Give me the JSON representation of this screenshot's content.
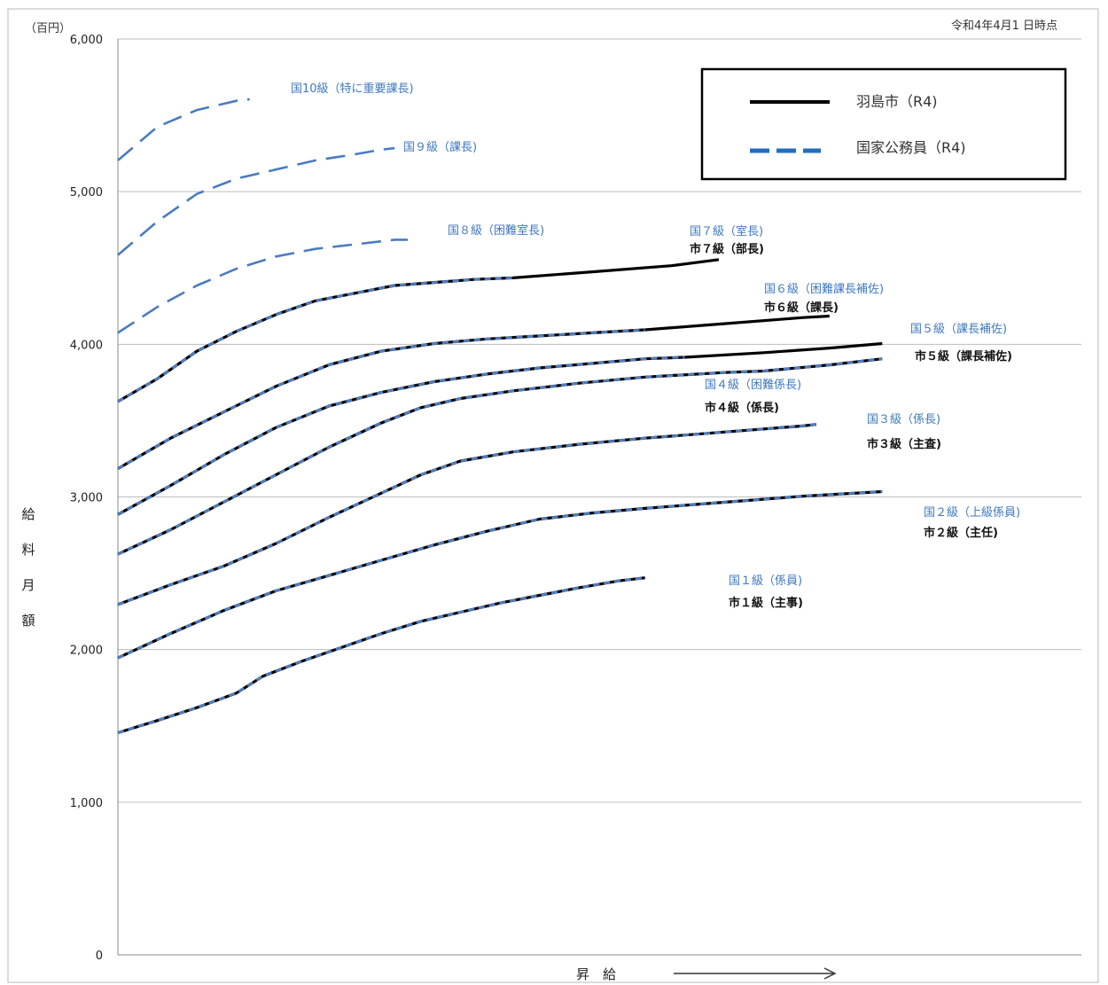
{
  "chart_data": {
    "type": "line",
    "unit_label": "（百円）",
    "date_note": "令和4年4月1 日時点",
    "ylabel": "給料月額",
    "xlabel": "昇　給",
    "ylim": [
      0,
      6000
    ],
    "yticks": [
      0,
      1000,
      2000,
      3000,
      4000,
      5000,
      6000
    ],
    "ytick_labels": [
      "0",
      "1,000",
      "2,000",
      "3,000",
      "4,000",
      "5,000",
      "6,000"
    ],
    "grid": true,
    "legend_position": "top-right",
    "legend": [
      {
        "label": "羽島市（R4)",
        "style": "solid",
        "color": "#000000"
      },
      {
        "label": "国家公務員（R4)",
        "style": "dashed",
        "color": "#1f6fc0"
      }
    ],
    "series": [
      {
        "grade": 1,
        "national_label": "国１級（係員)",
        "city_label": "市１級（主事)",
        "national_points": [
          [
            0,
            1455
          ],
          [
            15,
            1535
          ],
          [
            30,
            1620
          ],
          [
            45,
            1715
          ],
          [
            55,
            1825
          ],
          [
            70,
            1925
          ],
          [
            85,
            2015
          ],
          [
            100,
            2105
          ],
          [
            115,
            2185
          ],
          [
            130,
            2245
          ],
          [
            145,
            2305
          ],
          [
            160,
            2355
          ],
          [
            175,
            2405
          ],
          [
            190,
            2450
          ],
          [
            200,
            2470
          ]
        ],
        "city_points": [
          [
            0,
            1455
          ],
          [
            15,
            1535
          ],
          [
            30,
            1620
          ],
          [
            45,
            1715
          ],
          [
            55,
            1825
          ],
          [
            70,
            1925
          ],
          [
            85,
            2015
          ],
          [
            100,
            2105
          ],
          [
            115,
            2185
          ],
          [
            130,
            2245
          ],
          [
            145,
            2305
          ],
          [
            160,
            2355
          ],
          [
            175,
            2405
          ],
          [
            190,
            2450
          ],
          [
            200,
            2470
          ]
        ]
      },
      {
        "grade": 2,
        "national_label": "国２級（上級係員)",
        "city_label": "市２級（主任)",
        "national_points": [
          [
            0,
            1945
          ],
          [
            20,
            2105
          ],
          [
            40,
            2255
          ],
          [
            60,
            2385
          ],
          [
            80,
            2485
          ],
          [
            100,
            2585
          ],
          [
            120,
            2685
          ],
          [
            140,
            2775
          ],
          [
            160,
            2855
          ],
          [
            180,
            2895
          ],
          [
            200,
            2925
          ],
          [
            230,
            2965
          ],
          [
            260,
            3005
          ],
          [
            290,
            3035
          ]
        ],
        "city_points": [
          [
            0,
            1945
          ],
          [
            20,
            2105
          ],
          [
            40,
            2255
          ],
          [
            60,
            2385
          ],
          [
            80,
            2485
          ],
          [
            100,
            2585
          ],
          [
            120,
            2685
          ],
          [
            140,
            2775
          ],
          [
            160,
            2855
          ],
          [
            180,
            2895
          ],
          [
            200,
            2925
          ],
          [
            230,
            2965
          ],
          [
            260,
            3005
          ],
          [
            290,
            3035
          ]
        ]
      },
      {
        "grade": 3,
        "national_label": "国３級（係長)",
        "city_label": "市３級（主査)",
        "national_points": [
          [
            0,
            2295
          ],
          [
            20,
            2425
          ],
          [
            40,
            2545
          ],
          [
            60,
            2695
          ],
          [
            80,
            2865
          ],
          [
            100,
            3025
          ],
          [
            115,
            3145
          ],
          [
            130,
            3235
          ],
          [
            150,
            3295
          ],
          [
            175,
            3345
          ],
          [
            200,
            3385
          ],
          [
            230,
            3425
          ],
          [
            260,
            3465
          ],
          [
            265,
            3475
          ]
        ],
        "city_points": [
          [
            0,
            2295
          ],
          [
            20,
            2425
          ],
          [
            40,
            2545
          ],
          [
            60,
            2695
          ],
          [
            80,
            2865
          ],
          [
            100,
            3025
          ],
          [
            115,
            3145
          ],
          [
            130,
            3235
          ],
          [
            150,
            3295
          ],
          [
            175,
            3345
          ],
          [
            200,
            3385
          ],
          [
            230,
            3425
          ],
          [
            260,
            3465
          ],
          [
            265,
            3475
          ]
        ]
      },
      {
        "grade": 4,
        "national_label": "国４級（困難係長)",
        "city_label": "市４級（係長)",
        "national_points": [
          [
            0,
            2625
          ],
          [
            20,
            2785
          ],
          [
            40,
            2965
          ],
          [
            60,
            3145
          ],
          [
            80,
            3325
          ],
          [
            100,
            3485
          ],
          [
            115,
            3585
          ],
          [
            130,
            3645
          ],
          [
            150,
            3695
          ],
          [
            175,
            3745
          ],
          [
            200,
            3785
          ],
          [
            230,
            3815
          ],
          [
            245,
            3825
          ],
          [
            270,
            3865
          ],
          [
            290,
            3905
          ]
        ],
        "city_points": [
          [
            0,
            2625
          ],
          [
            20,
            2785
          ],
          [
            40,
            2965
          ],
          [
            60,
            3145
          ],
          [
            80,
            3325
          ],
          [
            100,
            3485
          ],
          [
            115,
            3585
          ],
          [
            130,
            3645
          ],
          [
            150,
            3695
          ],
          [
            175,
            3745
          ],
          [
            200,
            3785
          ],
          [
            230,
            3815
          ],
          [
            245,
            3825
          ],
          [
            270,
            3865
          ],
          [
            290,
            3905
          ]
        ]
      },
      {
        "grade": 5,
        "national_label": "国５級（課長補佐)",
        "city_label": "市５級（課長補佐)",
        "national_points": [
          [
            0,
            2885
          ],
          [
            20,
            3075
          ],
          [
            40,
            3275
          ],
          [
            60,
            3455
          ],
          [
            80,
            3595
          ],
          [
            100,
            3685
          ],
          [
            120,
            3755
          ],
          [
            140,
            3805
          ],
          [
            160,
            3845
          ],
          [
            180,
            3875
          ],
          [
            200,
            3905
          ],
          [
            215,
            3915
          ]
        ],
        "city_points": [
          [
            0,
            2885
          ],
          [
            20,
            3075
          ],
          [
            40,
            3275
          ],
          [
            60,
            3455
          ],
          [
            80,
            3595
          ],
          [
            100,
            3685
          ],
          [
            120,
            3755
          ],
          [
            140,
            3805
          ],
          [
            160,
            3845
          ],
          [
            180,
            3875
          ],
          [
            200,
            3905
          ],
          [
            215,
            3915
          ],
          [
            245,
            3945
          ],
          [
            270,
            3975
          ],
          [
            290,
            4005
          ]
        ]
      },
      {
        "grade": 6,
        "national_label": "国６級（困難課長補佐)",
        "city_label": "市６級（課長)",
        "national_points": [
          [
            0,
            3185
          ],
          [
            20,
            3385
          ],
          [
            40,
            3555
          ],
          [
            60,
            3725
          ],
          [
            80,
            3865
          ],
          [
            100,
            3955
          ],
          [
            120,
            4005
          ],
          [
            140,
            4035
          ],
          [
            160,
            4055
          ],
          [
            180,
            4075
          ],
          [
            200,
            4095
          ]
        ],
        "city_points": [
          [
            0,
            3185
          ],
          [
            20,
            3385
          ],
          [
            40,
            3555
          ],
          [
            60,
            3725
          ],
          [
            80,
            3865
          ],
          [
            100,
            3955
          ],
          [
            120,
            4005
          ],
          [
            140,
            4035
          ],
          [
            160,
            4055
          ],
          [
            180,
            4075
          ],
          [
            200,
            4095
          ],
          [
            230,
            4135
          ],
          [
            260,
            4175
          ],
          [
            270,
            4185
          ]
        ]
      },
      {
        "grade": 7,
        "national_label": "国７級（室長)",
        "city_label": "市７級（部長)",
        "national_points": [
          [
            0,
            3625
          ],
          [
            15,
            3775
          ],
          [
            30,
            3955
          ],
          [
            45,
            4085
          ],
          [
            60,
            4195
          ],
          [
            75,
            4285
          ],
          [
            90,
            4335
          ],
          [
            105,
            4385
          ],
          [
            120,
            4405
          ],
          [
            135,
            4425
          ],
          [
            150,
            4435
          ]
        ],
        "city_points": [
          [
            0,
            3625
          ],
          [
            15,
            3775
          ],
          [
            30,
            3955
          ],
          [
            45,
            4085
          ],
          [
            60,
            4195
          ],
          [
            75,
            4285
          ],
          [
            90,
            4335
          ],
          [
            105,
            4385
          ],
          [
            120,
            4405
          ],
          [
            135,
            4425
          ],
          [
            150,
            4435
          ],
          [
            180,
            4475
          ],
          [
            210,
            4515
          ],
          [
            228,
            4555
          ]
        ]
      },
      {
        "grade": 8,
        "national_label": "国８級（困難室長)",
        "city_label": "",
        "national_points": [
          [
            0,
            4075
          ],
          [
            15,
            4245
          ],
          [
            30,
            4385
          ],
          [
            45,
            4495
          ],
          [
            60,
            4575
          ],
          [
            75,
            4625
          ],
          [
            90,
            4655
          ],
          [
            105,
            4685
          ],
          [
            110,
            4685
          ]
        ],
        "city_points": []
      },
      {
        "grade": 9,
        "national_label": "国９級（課長)",
        "city_label": "",
        "national_points": [
          [
            0,
            4585
          ],
          [
            15,
            4805
          ],
          [
            30,
            4985
          ],
          [
            45,
            5085
          ],
          [
            60,
            5145
          ],
          [
            75,
            5205
          ],
          [
            90,
            5245
          ],
          [
            100,
            5275
          ],
          [
            105,
            5285
          ]
        ],
        "city_points": []
      },
      {
        "grade": 10,
        "national_label": "国10級（特に重要課長)",
        "city_label": "",
        "national_points": [
          [
            0,
            5205
          ],
          [
            15,
            5425
          ],
          [
            30,
            5535
          ],
          [
            45,
            5595
          ],
          [
            50,
            5605
          ]
        ],
        "city_points": []
      }
    ]
  }
}
